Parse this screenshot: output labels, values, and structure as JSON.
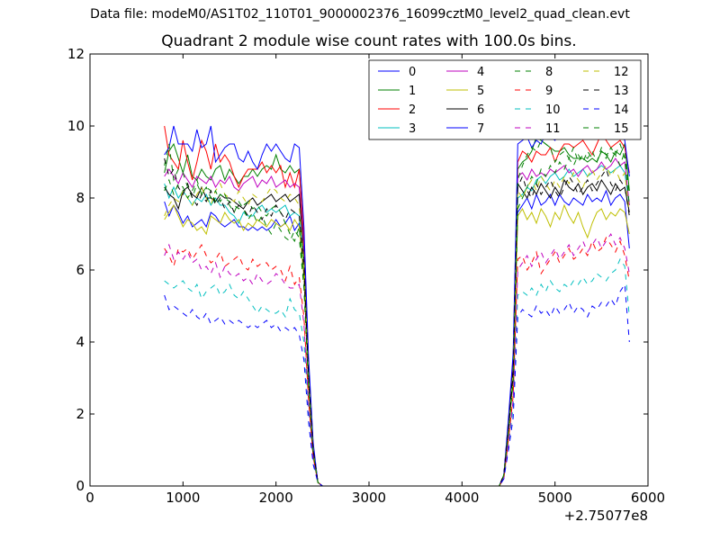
{
  "figure": {
    "suptitle": "Data file: modeM0/AS1T02_110T01_9000002376_16099cztM0_level2_quad_clean.evt",
    "title": "Quadrant 2 module wise count rates with 100.0s bins."
  },
  "chart_data": {
    "type": "line",
    "title": "Quadrant 2 module wise count rates with 100.0s bins.",
    "xlabel": "",
    "ylabel": "",
    "x_offset_label": "+2.75077e8",
    "xlim": [
      0,
      6000
    ],
    "ylim": [
      0,
      12
    ],
    "xticks": [
      0,
      1000,
      2000,
      3000,
      4000,
      5000,
      6000
    ],
    "yticks": [
      0,
      2,
      4,
      6,
      8,
      10,
      12
    ],
    "grid": false,
    "legend": {
      "placement": "top-right",
      "columns": 4
    },
    "x": [
      800,
      850,
      900,
      950,
      1000,
      1050,
      1100,
      1150,
      1200,
      1250,
      1300,
      1350,
      1400,
      1450,
      1500,
      1550,
      1600,
      1650,
      1700,
      1750,
      1800,
      1850,
      1900,
      1950,
      2000,
      2050,
      2100,
      2150,
      2200,
      2250,
      2300,
      2350,
      2400,
      2450,
      2500,
      4400,
      4450,
      4500,
      4550,
      4600,
      4650,
      4700,
      4750,
      4800,
      4850,
      4900,
      4950,
      5000,
      5050,
      5100,
      5150,
      5200,
      5250,
      5300,
      5350,
      5400,
      5450,
      5500,
      5550,
      5600,
      5650,
      5700,
      5750,
      5800
    ],
    "series": [
      {
        "name": "0",
        "color": "#0000ff",
        "dash": "solid",
        "values": [
          7.9,
          7.5,
          7.8,
          7.6,
          7.3,
          7.5,
          7.2,
          7.3,
          7.4,
          7.2,
          7.6,
          7.5,
          7.3,
          7.2,
          7.3,
          7.4,
          7.2,
          7.2,
          7.1,
          7.2,
          7.1,
          7.2,
          7.1,
          7.2,
          7.4,
          7.2,
          7.3,
          7.5,
          7.1,
          7.3,
          5.9,
          3.0,
          1.0,
          0.1,
          0.0,
          0.0,
          0.3,
          1.5,
          3.0,
          7.6,
          7.8,
          8.0,
          7.7,
          8.1,
          7.8,
          7.9,
          8.1,
          7.8,
          8.1,
          7.9,
          7.8,
          8.0,
          7.9,
          7.8,
          8.1,
          7.9,
          8.0,
          7.9,
          8.2,
          7.8,
          8.0,
          8.1,
          7.9,
          6.6
        ]
      },
      {
        "name": "1",
        "color": "#008000",
        "dash": "solid",
        "values": [
          8.7,
          9.3,
          9.5,
          9.1,
          8.7,
          9.2,
          8.6,
          8.5,
          8.8,
          8.6,
          8.5,
          8.8,
          8.9,
          8.5,
          8.8,
          8.6,
          8.4,
          8.6,
          8.6,
          8.8,
          8.6,
          8.8,
          8.9,
          8.8,
          9.2,
          8.8,
          8.7,
          8.9,
          8.7,
          8.8,
          6.8,
          3.4,
          1.1,
          0.1,
          0.0,
          0.0,
          0.3,
          1.8,
          3.5,
          8.8,
          9.0,
          9.1,
          9.3,
          9.7,
          9.6,
          9.5,
          9.4,
          9.3,
          9.3,
          9.4,
          9.2,
          9.1,
          9.1,
          9.1,
          9.0,
          9.1,
          9.0,
          9.3,
          9.2,
          9.0,
          9.3,
          9.2,
          9.5,
          8.2
        ]
      },
      {
        "name": "2",
        "color": "#ff0000",
        "dash": "solid",
        "values": [
          10.0,
          9.2,
          9.0,
          8.8,
          9.6,
          9.0,
          8.5,
          9.0,
          9.6,
          9.3,
          8.8,
          9.5,
          9.0,
          9.2,
          9.0,
          8.6,
          8.3,
          8.6,
          8.8,
          8.8,
          8.8,
          9.0,
          8.7,
          8.9,
          8.7,
          8.9,
          8.3,
          8.7,
          8.3,
          8.8,
          6.9,
          3.4,
          1.1,
          0.1,
          0.0,
          0.0,
          0.3,
          1.8,
          3.6,
          9.0,
          9.3,
          9.2,
          9.0,
          9.3,
          9.2,
          9.2,
          9.4,
          9.0,
          9.3,
          9.5,
          9.5,
          9.4,
          9.5,
          9.6,
          9.4,
          9.2,
          9.5,
          9.8,
          9.6,
          9.4,
          9.5,
          9.6,
          9.4,
          8.7
        ]
      },
      {
        "name": "3",
        "color": "#00bfbf",
        "dash": "solid",
        "values": [
          8.4,
          8.0,
          8.3,
          8.0,
          8.2,
          8.0,
          7.8,
          8.0,
          7.9,
          8.1,
          7.8,
          8.0,
          7.8,
          7.8,
          7.6,
          7.5,
          7.3,
          7.6,
          7.5,
          7.5,
          7.7,
          7.8,
          7.6,
          7.7,
          7.6,
          7.7,
          7.8,
          7.5,
          7.6,
          7.5,
          5.9,
          3.0,
          0.9,
          0.1,
          0.0,
          0.0,
          0.3,
          1.6,
          3.1,
          8.0,
          8.1,
          8.3,
          8.2,
          8.5,
          8.6,
          8.4,
          8.6,
          8.7,
          8.5,
          8.6,
          8.8,
          8.6,
          8.7,
          8.8,
          8.6,
          8.7,
          8.8,
          8.9,
          8.8,
          8.7,
          8.8,
          8.9,
          8.7,
          7.8
        ]
      },
      {
        "name": "4",
        "color": "#bf00bf",
        "dash": "solid",
        "values": [
          8.6,
          8.8,
          8.6,
          8.4,
          8.7,
          8.5,
          8.3,
          8.6,
          8.5,
          8.4,
          8.6,
          8.3,
          8.5,
          8.4,
          8.6,
          8.3,
          8.2,
          8.4,
          8.5,
          8.6,
          8.3,
          8.5,
          8.4,
          8.6,
          8.3,
          8.4,
          8.5,
          8.3,
          8.4,
          8.3,
          6.6,
          3.3,
          1.0,
          0.1,
          0.0,
          0.0,
          0.3,
          1.7,
          3.4,
          8.6,
          8.7,
          8.5,
          8.8,
          8.6,
          8.7,
          8.6,
          8.8,
          8.7,
          8.8,
          8.9,
          8.7,
          8.8,
          8.6,
          8.8,
          8.9,
          8.7,
          8.8,
          9.0,
          8.8,
          8.9,
          9.1,
          8.9,
          9.0,
          7.8
        ]
      },
      {
        "name": "5",
        "color": "#bfbf00",
        "dash": "solid",
        "values": [
          7.4,
          7.6,
          7.8,
          7.5,
          7.2,
          7.4,
          7.3,
          7.1,
          7.2,
          7.0,
          7.5,
          7.4,
          7.3,
          7.6,
          7.4,
          7.3,
          7.4,
          7.1,
          7.3,
          7.2,
          7.4,
          7.3,
          7.2,
          7.4,
          7.3,
          7.2,
          7.3,
          7.1,
          7.4,
          7.2,
          5.8,
          2.9,
          0.9,
          0.1,
          0.0,
          0.0,
          0.3,
          1.5,
          2.9,
          7.5,
          7.7,
          7.4,
          7.6,
          7.3,
          7.7,
          7.5,
          7.2,
          7.6,
          7.4,
          7.8,
          7.5,
          7.3,
          7.6,
          7.2,
          6.9,
          7.3,
          7.6,
          7.7,
          7.4,
          7.6,
          7.5,
          7.7,
          7.6,
          7.0
        ]
      },
      {
        "name": "6",
        "color": "#000000",
        "dash": "solid",
        "values": [
          8.3,
          8.1,
          8.0,
          7.7,
          8.2,
          8.3,
          8.1,
          8.0,
          8.3,
          8.0,
          8.0,
          7.9,
          8.1,
          8.0,
          8.0,
          7.9,
          7.8,
          7.7,
          7.9,
          8.0,
          7.8,
          7.9,
          8.0,
          8.1,
          7.9,
          8.0,
          8.1,
          7.9,
          8.0,
          8.1,
          6.3,
          3.2,
          1.0,
          0.1,
          0.0,
          0.0,
          0.3,
          1.7,
          3.3,
          8.4,
          8.2,
          8.0,
          8.3,
          8.1,
          8.4,
          8.2,
          8.0,
          8.3,
          8.1,
          8.5,
          8.3,
          8.2,
          8.4,
          8.1,
          8.3,
          8.4,
          8.2,
          8.5,
          8.3,
          8.1,
          8.4,
          8.2,
          8.3,
          7.6
        ]
      },
      {
        "name": "7",
        "color": "#0000ff",
        "dash": "solid",
        "values": [
          9.2,
          9.4,
          10.0,
          9.5,
          9.5,
          9.5,
          9.3,
          9.9,
          9.4,
          9.5,
          10.0,
          9.0,
          9.2,
          9.4,
          9.5,
          9.5,
          9.1,
          9.0,
          9.3,
          9.0,
          8.8,
          9.2,
          9.5,
          9.3,
          9.5,
          9.3,
          9.1,
          9.0,
          9.5,
          9.4,
          7.2,
          3.6,
          1.2,
          0.1,
          0.0,
          0.0,
          0.3,
          1.9,
          3.7,
          9.5,
          9.6,
          9.7,
          9.4,
          9.6,
          9.5,
          9.8,
          9.7,
          9.6,
          9.9,
          9.8,
          9.7,
          9.9,
          10.0,
          9.9,
          9.8,
          10.0,
          9.8,
          10.3,
          10.1,
          9.9,
          9.7,
          9.8,
          9.6,
          8.6
        ]
      },
      {
        "name": "8",
        "color": "#008000",
        "dash": "dashed",
        "values": [
          8.9,
          9.5,
          8.5,
          8.8,
          8.7,
          8.3,
          8.0,
          8.4,
          8.1,
          8.3,
          8.2,
          7.9,
          8.1,
          8.0,
          7.9,
          7.8,
          7.7,
          7.8,
          7.9,
          7.7,
          7.8,
          7.6,
          7.5,
          7.7,
          7.8,
          7.6,
          7.3,
          7.0,
          6.8,
          7.2,
          5.6,
          2.8,
          0.9,
          0.1,
          0.0,
          0.0,
          0.3,
          1.5,
          3.0,
          8.5,
          8.9,
          9.2,
          9.4,
          9.3,
          9.6,
          9.5,
          9.4,
          9.0,
          9.2,
          9.3,
          9.1,
          9.4,
          9.0,
          9.2,
          9.1,
          9.3,
          9.0,
          9.4,
          9.2,
          9.3,
          9.2,
          8.9,
          9.3,
          8.1
        ]
      },
      {
        "name": "9",
        "color": "#ff0000",
        "dash": "dashed",
        "values": [
          6.6,
          6.4,
          6.1,
          6.6,
          6.5,
          6.6,
          6.3,
          6.5,
          6.7,
          6.4,
          6.2,
          6.3,
          6.5,
          6.1,
          6.2,
          6.3,
          6.4,
          6.1,
          6.0,
          6.3,
          6.1,
          6.2,
          6.2,
          6.0,
          6.1,
          6.0,
          5.7,
          6.1,
          5.6,
          5.8,
          4.7,
          2.4,
          0.8,
          0.1,
          0.0,
          0.0,
          0.2,
          1.3,
          2.5,
          6.3,
          6.4,
          6.0,
          6.2,
          6.5,
          5.9,
          6.1,
          6.3,
          6.5,
          6.2,
          6.4,
          6.6,
          6.3,
          6.4,
          6.6,
          6.4,
          6.8,
          6.5,
          6.6,
          6.9,
          6.7,
          6.5,
          6.8,
          6.4,
          5.7
        ]
      },
      {
        "name": "10",
        "color": "#00bfbf",
        "dash": "dashed",
        "values": [
          5.7,
          5.6,
          5.5,
          5.6,
          5.7,
          5.5,
          5.4,
          5.6,
          5.2,
          5.4,
          5.5,
          5.6,
          5.3,
          5.4,
          5.6,
          5.3,
          5.2,
          5.4,
          5.2,
          5.0,
          4.8,
          5.0,
          4.9,
          4.8,
          4.8,
          4.9,
          4.7,
          5.2,
          4.9,
          4.8,
          4.0,
          2.1,
          0.7,
          0.1,
          0.0,
          0.0,
          0.2,
          1.1,
          2.2,
          5.3,
          5.4,
          5.3,
          5.5,
          5.3,
          5.6,
          5.4,
          5.7,
          5.5,
          5.4,
          5.6,
          5.5,
          5.7,
          5.6,
          5.8,
          5.6,
          5.7,
          5.9,
          5.8,
          5.7,
          5.9,
          6.0,
          6.3,
          6.1,
          4.7
        ]
      },
      {
        "name": "11",
        "color": "#bf00bf",
        "dash": "dashed",
        "values": [
          6.4,
          6.7,
          6.3,
          6.5,
          6.3,
          6.5,
          6.2,
          6.3,
          6.0,
          6.1,
          5.9,
          6.2,
          5.8,
          6.1,
          5.9,
          5.8,
          5.9,
          5.7,
          5.8,
          5.6,
          5.9,
          5.7,
          5.6,
          5.7,
          5.9,
          5.8,
          5.6,
          5.5,
          5.5,
          5.6,
          4.5,
          2.3,
          0.8,
          0.1,
          0.0,
          0.0,
          0.2,
          1.2,
          2.4,
          6.0,
          6.2,
          6.4,
          6.1,
          6.3,
          6.5,
          6.2,
          6.4,
          6.6,
          6.3,
          6.5,
          6.7,
          6.4,
          6.6,
          6.8,
          6.5,
          6.7,
          6.9,
          6.6,
          6.8,
          7.0,
          6.7,
          6.9,
          6.6,
          5.9
        ]
      },
      {
        "name": "12",
        "color": "#bfbf00",
        "dash": "dashed",
        "values": [
          7.5,
          7.8,
          8.0,
          7.9,
          8.2,
          8.0,
          7.8,
          8.1,
          8.3,
          8.0,
          7.8,
          8.2,
          8.4,
          8.1,
          8.0,
          7.9,
          8.2,
          8.0,
          7.8,
          8.1,
          8.0,
          7.9,
          8.1,
          8.3,
          8.2,
          8.0,
          7.9,
          8.1,
          8.0,
          7.8,
          6.2,
          3.1,
          1.0,
          0.1,
          0.0,
          0.0,
          0.3,
          1.6,
          3.2,
          8.2,
          8.0,
          8.3,
          8.5,
          8.2,
          8.6,
          8.4,
          8.2,
          8.5,
          8.3,
          8.6,
          8.4,
          8.7,
          8.5,
          8.3,
          8.6,
          8.8,
          8.5,
          8.7,
          8.9,
          8.6,
          8.8,
          8.5,
          8.7,
          7.6
        ]
      },
      {
        "name": "13",
        "color": "#000000",
        "dash": "dashed",
        "values": [
          9.1,
          8.6,
          8.8,
          8.3,
          8.1,
          8.4,
          8.0,
          7.8,
          8.1,
          7.9,
          8.2,
          7.8,
          8.0,
          7.7,
          7.9,
          7.6,
          7.8,
          7.7,
          7.5,
          7.8,
          7.6,
          7.4,
          7.7,
          7.5,
          7.8,
          7.6,
          7.4,
          7.7,
          7.6,
          7.5,
          6.0,
          3.0,
          1.0,
          0.1,
          0.0,
          0.0,
          0.3,
          1.6,
          3.1,
          8.3,
          8.6,
          8.2,
          8.0,
          8.4,
          8.1,
          8.3,
          8.5,
          8.2,
          8.0,
          8.3,
          8.6,
          8.4,
          8.1,
          8.3,
          8.5,
          8.2,
          8.4,
          8.6,
          8.8,
          8.4,
          8.2,
          8.5,
          8.3,
          7.5
        ]
      },
      {
        "name": "14",
        "color": "#0000ff",
        "dash": "dashed",
        "values": [
          5.3,
          4.9,
          5.0,
          4.9,
          4.8,
          4.7,
          4.9,
          4.7,
          4.6,
          4.8,
          4.5,
          4.6,
          4.7,
          4.5,
          4.6,
          4.5,
          4.6,
          4.5,
          4.4,
          4.5,
          4.4,
          4.5,
          4.6,
          4.4,
          4.5,
          4.3,
          4.4,
          4.3,
          4.4,
          4.2,
          3.5,
          1.8,
          0.6,
          0.1,
          0.0,
          0.0,
          0.2,
          1.0,
          1.9,
          4.7,
          4.9,
          4.8,
          4.7,
          5.0,
          4.8,
          4.9,
          4.7,
          5.0,
          4.8,
          4.9,
          5.1,
          4.8,
          5.0,
          4.9,
          4.7,
          5.0,
          4.9,
          5.1,
          5.0,
          5.2,
          5.0,
          5.4,
          5.6,
          4.0
        ]
      },
      {
        "name": "15",
        "color": "#008000",
        "dash": "dashed",
        "values": [
          8.2,
          8.5,
          8.1,
          8.4,
          8.3,
          8.0,
          8.2,
          8.5,
          8.1,
          8.3,
          8.0,
          8.2,
          7.9,
          8.1,
          7.8,
          7.6,
          7.9,
          7.7,
          7.4,
          7.6,
          7.3,
          7.5,
          7.2,
          7.0,
          7.3,
          7.1,
          6.9,
          6.8,
          7.1,
          6.9,
          5.5,
          2.8,
          0.9,
          0.1,
          0.0,
          0.0,
          0.3,
          1.5,
          2.9,
          7.7,
          8.0,
          8.3,
          8.6,
          8.4,
          8.8,
          8.6,
          8.9,
          8.7,
          9.0,
          8.8,
          9.1,
          8.9,
          9.2,
          9.0,
          9.3,
          9.1,
          9.0,
          9.3,
          9.1,
          9.4,
          9.2,
          9.5,
          9.1,
          7.8
        ]
      }
    ]
  }
}
